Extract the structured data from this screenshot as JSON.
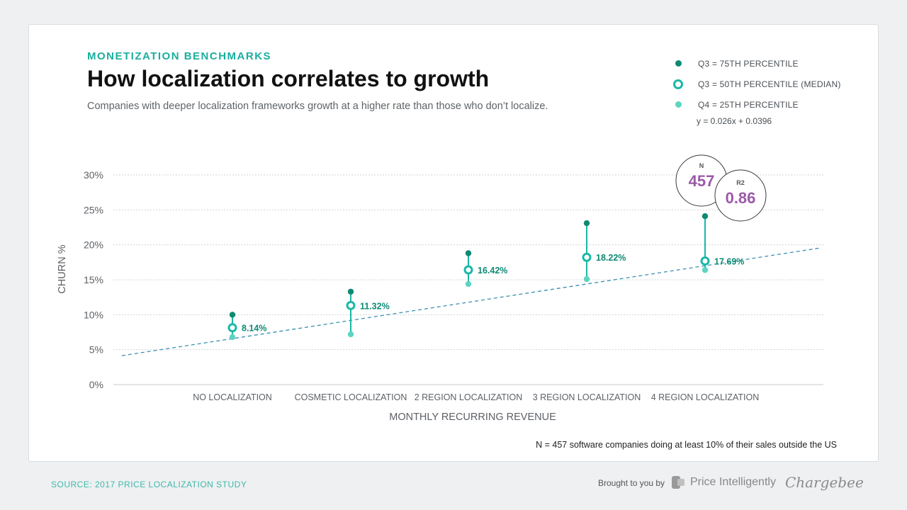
{
  "header": {
    "eyebrow": "MONETIZATION BENCHMARKS",
    "title": "How localization correlates to growth",
    "subtitle": "Companies with deeper localization frameworks growth at a higher rate than those who don’t localize."
  },
  "legend": {
    "items": [
      {
        "label": "Q3 = 75TH PERCENTILE",
        "icon": "filled-dot-dark"
      },
      {
        "label": "Q3 = 50TH PERCENTILE (MEDIAN)",
        "icon": "ring-dot"
      },
      {
        "label": "Q4 = 25TH PERCENTILE",
        "icon": "filled-dot-light"
      }
    ],
    "equation": "y = 0.026x + 0.0396"
  },
  "stats": {
    "n_label": "N",
    "n_value": "457",
    "r2_label": "R2",
    "r2_value": "0.86"
  },
  "chart_data": {
    "type": "scatter",
    "ylabel": "CHURN %",
    "xlabel": "MONTHLY RECURRING REVENUE",
    "ylim": [
      0,
      30
    ],
    "yticks": [
      "0%",
      "5%",
      "10%",
      "15%",
      "20%",
      "25%",
      "30%"
    ],
    "categories": [
      "NO LOCALIZATION",
      "COSMETIC LOCALIZATION",
      "2 REGION LOCALIZATION",
      "3 REGION LOCALIZATION",
      "4 REGION LOCALIZATION"
    ],
    "series": [
      {
        "name": "Q3 = 75TH PERCENTILE",
        "values": [
          10.0,
          13.3,
          18.8,
          23.1,
          24.1
        ]
      },
      {
        "name": "Q3 = 50TH PERCENTILE (MEDIAN)",
        "values": [
          8.14,
          11.32,
          16.42,
          18.22,
          17.69
        ]
      },
      {
        "name": "Q4 = 25TH PERCENTILE",
        "values": [
          6.8,
          7.2,
          14.4,
          15.1,
          16.4
        ]
      }
    ],
    "median_labels": [
      "8.14%",
      "11.32%",
      "16.42%",
      "18.22%",
      "17.69%"
    ],
    "trendline": {
      "slope": 0.026,
      "intercept": 0.0396
    },
    "grid": true,
    "colors": {
      "q75": "#0e8a73",
      "median": "#1ab8a6",
      "q25": "#5fd3c1",
      "trend": "#3a8fb0",
      "stats": "#9b59a8"
    }
  },
  "footnote": "N = 457 software companies doing at least 10% of their sales outside the US",
  "footer": {
    "source": "SOURCE: 2017 PRICE LOCALIZATION STUDY",
    "brought_by": "Brought to you by",
    "brand1": "Price Intelligently",
    "brand2": "Chargebee"
  }
}
